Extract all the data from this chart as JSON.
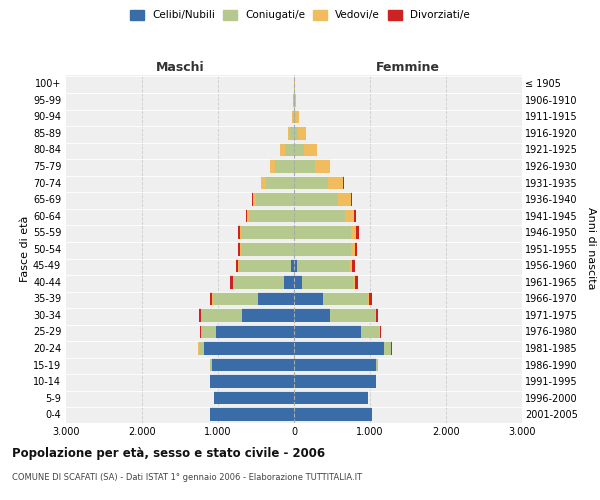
{
  "age_groups": [
    "0-4",
    "5-9",
    "10-14",
    "15-19",
    "20-24",
    "25-29",
    "30-34",
    "35-39",
    "40-44",
    "45-49",
    "50-54",
    "55-59",
    "60-64",
    "65-69",
    "70-74",
    "75-79",
    "80-84",
    "85-89",
    "90-94",
    "95-99",
    "100+"
  ],
  "birth_years": [
    "2001-2005",
    "1996-2000",
    "1991-1995",
    "1986-1990",
    "1981-1985",
    "1976-1980",
    "1971-1975",
    "1966-1970",
    "1961-1965",
    "1956-1960",
    "1951-1955",
    "1946-1950",
    "1941-1945",
    "1936-1940",
    "1931-1935",
    "1926-1930",
    "1921-1925",
    "1916-1920",
    "1911-1915",
    "1906-1910",
    "≤ 1905"
  ],
  "males_celibi": [
    1100,
    1050,
    1100,
    1080,
    1180,
    1030,
    680,
    480,
    130,
    40,
    5,
    5,
    5,
    5,
    5,
    5,
    2,
    2,
    0,
    0,
    0
  ],
  "males_coniugati": [
    0,
    0,
    0,
    25,
    75,
    190,
    540,
    590,
    670,
    690,
    690,
    690,
    590,
    490,
    370,
    240,
    115,
    45,
    18,
    8,
    4
  ],
  "males_vedovi": [
    0,
    0,
    0,
    0,
    4,
    8,
    8,
    8,
    8,
    8,
    12,
    15,
    25,
    45,
    55,
    75,
    65,
    28,
    12,
    4,
    1
  ],
  "males_divorziati": [
    0,
    0,
    0,
    0,
    4,
    8,
    18,
    28,
    28,
    28,
    28,
    28,
    18,
    12,
    8,
    0,
    0,
    0,
    0,
    0,
    0
  ],
  "females_nubili": [
    1030,
    980,
    1080,
    1080,
    1180,
    880,
    480,
    380,
    110,
    40,
    5,
    5,
    5,
    5,
    5,
    5,
    2,
    2,
    0,
    0,
    0
  ],
  "females_coniugate": [
    0,
    0,
    0,
    25,
    95,
    240,
    590,
    590,
    670,
    690,
    740,
    740,
    670,
    570,
    440,
    270,
    125,
    55,
    22,
    8,
    4
  ],
  "females_vedove": [
    0,
    0,
    0,
    0,
    4,
    8,
    8,
    15,
    25,
    35,
    55,
    75,
    115,
    175,
    195,
    195,
    175,
    95,
    45,
    12,
    4
  ],
  "females_divorziate": [
    0,
    0,
    0,
    0,
    4,
    12,
    28,
    38,
    38,
    32,
    32,
    32,
    22,
    18,
    12,
    8,
    0,
    0,
    0,
    0,
    0
  ],
  "color_celibi": "#3a6ca8",
  "color_coniugati": "#b5c98e",
  "color_vedovi": "#f0bc5e",
  "color_divorziati": "#cc2222",
  "xlim": 3000,
  "xtick_vals": [
    -3000,
    -2000,
    -1000,
    0,
    1000,
    2000,
    3000
  ],
  "xtick_labels": [
    "3.000",
    "2.000",
    "1.000",
    "0",
    "1.000",
    "2.000",
    "3.000"
  ],
  "title": "Popolazione per età, sesso e stato civile - 2006",
  "subtitle": "COMUNE DI SCAFATI (SA) - Dati ISTAT 1° gennaio 2006 - Elaborazione TUTTITALIA.IT",
  "label_maschi": "Maschi",
  "label_femmine": "Femmine",
  "ylabel_left": "Fasce di età",
  "ylabel_right": "Anni di nascita",
  "legend_labels": [
    "Celibi/Nubili",
    "Coniugati/e",
    "Vedovi/e",
    "Divorziati/e"
  ],
  "bg_color": "#ffffff",
  "plot_bg": "#efefef",
  "grid_color": "#cccccc"
}
